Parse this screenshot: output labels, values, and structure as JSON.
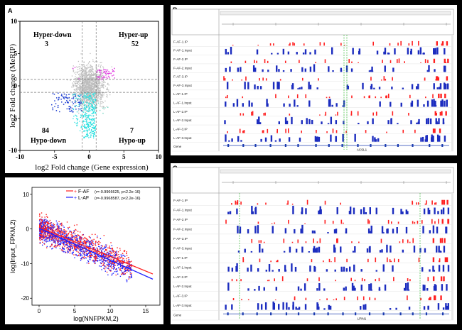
{
  "panelA": {
    "letter": "A",
    "quadrants": {
      "hyper_down": {
        "label": "Hyper-down",
        "count": "3"
      },
      "hyper_up": {
        "label": "Hyper-up",
        "count": "52"
      },
      "hypo_down": {
        "label": "Hypo-down",
        "count": "84"
      },
      "hypo_up": {
        "label": "Hypo-up",
        "count": "7"
      }
    },
    "colors": {
      "bulk": "#bdbdbd",
      "hyper_up": "#e040e0",
      "hypo_down": "#1f3fd1",
      "hypo_down_cyan": "#28e0e0",
      "hypo_up": "#7fd9c8"
    }
  },
  "panelB": {
    "letter": "B",
    "tracks": [
      "F-AF-1.IP",
      "F-AF-1.Input",
      "F-AF-2.IP",
      "F-AF-2.Input",
      "F-AF-3.IP",
      "F-AF-3.Input",
      "L-AF-1.IP",
      "L-AF-1.Input",
      "L-AF-2.IP",
      "L-AF-2.Input",
      "L-AF-3.IP",
      "L-AF-3.Input",
      "Gene"
    ],
    "gene_name": "ACSL1"
  },
  "panelC": {
    "letter": "C",
    "tracks": [
      "F-AF-1.IP",
      "F-AF-1.Input",
      "F-AF-2.IP",
      "F-AF-2.Input",
      "F-AF-3.IP",
      "F-AF-3.Input",
      "L-AF-1.IP",
      "L-AF-1.Input",
      "L-AF-2.IP",
      "L-AF-2.Input",
      "L-AF-3.IP",
      "L-AF-3.Input",
      "Gene"
    ],
    "gene_name": "LPIN1"
  },
  "chart_data": [
    {
      "type": "scatter",
      "title": "",
      "xlabel": "log2 Fold change (Gene expression)",
      "ylabel": "log2 Fold change (MeRIP)",
      "xlim": [
        -10,
        10
      ],
      "ylim": [
        -10,
        10
      ],
      "xticks": [
        -10,
        -5,
        0,
        5,
        10
      ],
      "yticks": [
        -10,
        -5,
        0,
        5,
        10
      ],
      "thresholds": {
        "x": [
          -1,
          1
        ],
        "y": [
          -1,
          1
        ]
      },
      "series": [
        {
          "name": "Hyper-down",
          "count": 3
        },
        {
          "name": "Hyper-up",
          "count": 52
        },
        {
          "name": "Hypo-down",
          "count": 84
        },
        {
          "name": "Hypo-up",
          "count": 7
        }
      ]
    },
    {
      "type": "scatter",
      "title": "",
      "xlabel": "log(NNFPKM,2)",
      "ylabel": "log(Input_FPKM,2)",
      "xlim": [
        -1,
        17
      ],
      "ylim": [
        -22,
        12
      ],
      "xticks": [
        0,
        5,
        10,
        15
      ],
      "yticks": [
        -20,
        -10,
        0,
        10
      ],
      "legend_position": "top-right",
      "series": [
        {
          "name": "F-AF",
          "label": "(r=-0.9966625, p<2.2e-16)",
          "color": "#ff2020",
          "fit": [
            [
              0,
              0.5
            ],
            [
              16,
              -13
            ]
          ]
        },
        {
          "name": "L-AF",
          "label": "(r=-0.9968587, p<2.2e-16)",
          "color": "#2020ff",
          "fit": [
            [
              0,
              0.2
            ],
            [
              16,
              -14.5
            ]
          ]
        }
      ]
    }
  ]
}
